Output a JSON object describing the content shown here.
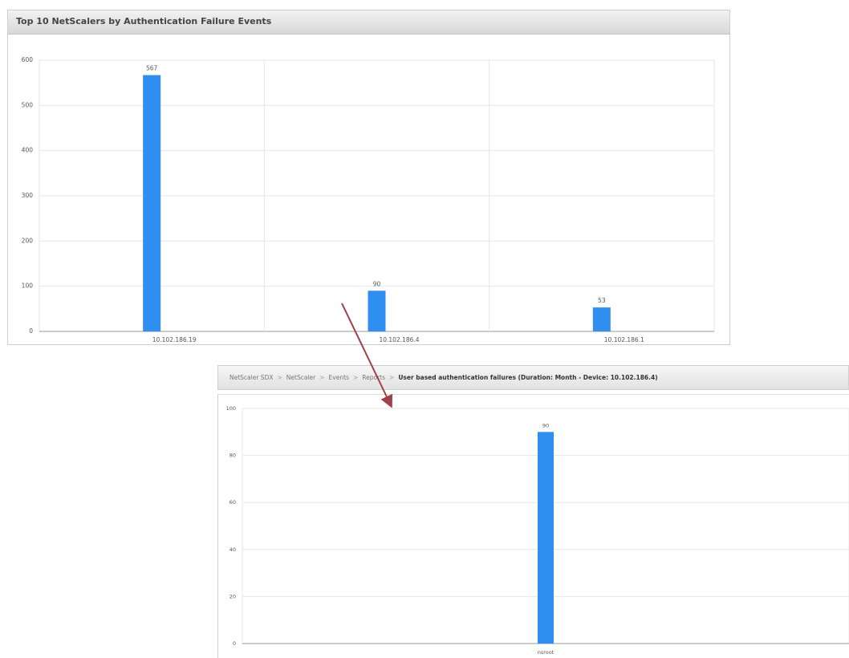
{
  "top_panel": {
    "title": "Top 10 NetScalers by Authentication Failure Events"
  },
  "bottom_panel": {
    "breadcrumb": [
      {
        "label": "NetScaler SDX",
        "current": false
      },
      {
        "label": "NetScaler",
        "current": false
      },
      {
        "label": "Events",
        "current": false
      },
      {
        "label": "Reports",
        "current": false
      },
      {
        "label": "User based authentication failures (Duration: Month - Device: 10.102.186.4)",
        "current": true
      }
    ]
  },
  "colors": {
    "bar": "#2f8ff0",
    "arrow": "#a0404a",
    "grid": "#e6e6e6"
  },
  "chart_data": [
    {
      "type": "bar",
      "title": "Top 10 NetScalers by Authentication Failure Events",
      "xlabel": "",
      "ylabel": "",
      "categories": [
        "10.102.186.19",
        "10.102.186.4",
        "10.102.186.1"
      ],
      "values": [
        567,
        90,
        53
      ],
      "data_labels": [
        "567",
        "90",
        "53"
      ],
      "ylim": [
        0,
        600
      ],
      "yticks": [
        "0",
        "100",
        "200",
        "300",
        "400",
        "500",
        "600"
      ],
      "grid": true
    },
    {
      "type": "bar",
      "title": "",
      "xlabel": "",
      "ylabel": "",
      "categories": [
        "nsroot"
      ],
      "values": [
        90
      ],
      "data_labels": [
        "90"
      ],
      "ylim": [
        0,
        100
      ],
      "yticks": [
        "0",
        "20",
        "40",
        "60",
        "80",
        "100"
      ],
      "grid": true
    }
  ]
}
